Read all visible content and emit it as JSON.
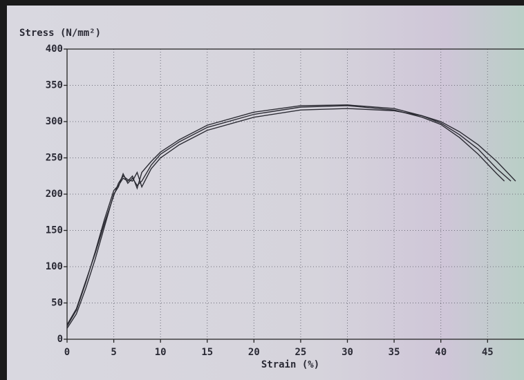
{
  "chart_data": {
    "type": "line",
    "y_label": "Stress (N/mm²)",
    "x_label": "Strain (%)",
    "xlim": [
      0,
      48.9
    ],
    "ylim": [
      0,
      400
    ],
    "xticks": [
      0,
      5,
      10,
      15,
      20,
      25,
      30,
      35,
      40,
      45
    ],
    "yticks": [
      0,
      50,
      100,
      150,
      200,
      250,
      300,
      350,
      400
    ],
    "grid": true,
    "series": [
      {
        "color": "#2b2b33",
        "x": [
          0,
          1,
          2,
          3,
          4,
          5,
          5.5,
          6,
          6.5,
          7,
          7.5,
          8,
          9,
          10,
          12,
          15,
          20,
          25,
          30,
          35,
          38,
          40,
          42,
          44,
          46,
          46.8
        ],
        "values": [
          15,
          35,
          70,
          110,
          155,
          200,
          210,
          228,
          215,
          222,
          212,
          218,
          240,
          255,
          272,
          292,
          310,
          320,
          322,
          316,
          306,
          296,
          278,
          255,
          228,
          218
        ]
      },
      {
        "color": "#2b2b33",
        "x": [
          0,
          1,
          2,
          3,
          4,
          5,
          5.5,
          6,
          6.5,
          7,
          7.5,
          8,
          9,
          10,
          12,
          15,
          20,
          25,
          30,
          35,
          38,
          40,
          42,
          44,
          46,
          47.5
        ],
        "values": [
          18,
          40,
          78,
          120,
          165,
          205,
          212,
          222,
          218,
          225,
          208,
          230,
          245,
          258,
          275,
          295,
          313,
          322,
          323,
          318,
          308,
          298,
          282,
          262,
          235,
          218
        ]
      },
      {
        "color": "#2b2b33",
        "x": [
          0,
          1,
          2,
          3,
          4,
          5,
          5.5,
          6,
          6.5,
          7,
          7.5,
          8,
          9,
          10,
          12,
          15,
          20,
          25,
          30,
          35,
          38,
          40,
          42,
          44,
          46,
          48
        ],
        "values": [
          20,
          42,
          80,
          118,
          160,
          198,
          215,
          225,
          220,
          218,
          230,
          210,
          235,
          250,
          268,
          288,
          306,
          316,
          318,
          315,
          308,
          300,
          286,
          268,
          245,
          218
        ]
      }
    ]
  }
}
